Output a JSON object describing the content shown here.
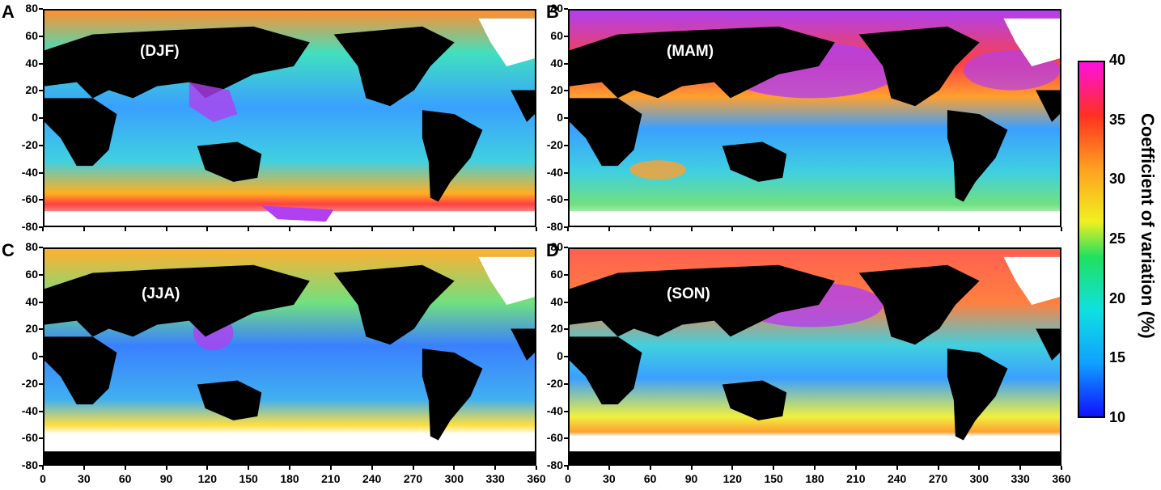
{
  "panels": [
    {
      "letter": "A",
      "season": "(DJF)"
    },
    {
      "letter": "B",
      "season": "(MAM)"
    },
    {
      "letter": "C",
      "season": "(JJA)"
    },
    {
      "letter": "D",
      "season": "(SON)"
    }
  ],
  "y_ticks": [
    "80",
    "60",
    "40",
    "20",
    "0",
    "-20",
    "-40",
    "-60",
    "-80"
  ],
  "x_ticks": [
    "0",
    "30",
    "60",
    "90",
    "120",
    "150",
    "180",
    "210",
    "240",
    "270",
    "300",
    "330",
    "360"
  ],
  "colorbar": {
    "title": "Coefficient of variation (%)",
    "ticks": [
      "40",
      "35",
      "30",
      "25",
      "20",
      "15",
      "10"
    ],
    "colors": [
      "#1010ff",
      "#10a0ff",
      "#10e0e0",
      "#20e060",
      "#f0f020",
      "#ffa020",
      "#ff3020",
      "#ff10e0"
    ]
  },
  "colors": {
    "land": "#000000",
    "ice": "#ffffff",
    "ocean_base": "#3aa0ff",
    "saturated": "#b040f0"
  }
}
